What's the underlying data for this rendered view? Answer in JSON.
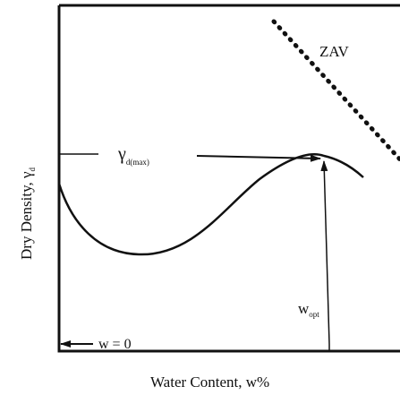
{
  "diagram": {
    "zav_label": "ZAV",
    "gamma_max": {
      "symbol": "γ",
      "subscript": "d(max)"
    },
    "y_axis_label": {
      "text": "Dry Density, γ",
      "subscript": "d"
    },
    "w_zero_label": "w = 0",
    "w_opt": {
      "symbol": "w",
      "subscript": "opt"
    },
    "x_axis_label": "Water Content, w%"
  }
}
